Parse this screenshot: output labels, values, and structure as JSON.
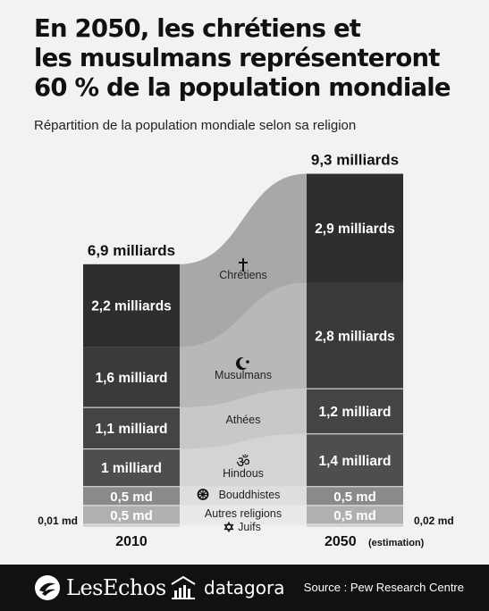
{
  "title_lines": [
    "En 2050, les chrétiens et",
    "les musulmans représenteront",
    "60 % de la population mondiale"
  ],
  "subtitle": "Répartition de la population mondiale selon sa religion",
  "chart_data": {
    "type": "stacked-bar-flow",
    "title": "",
    "unit": "milliards",
    "categories": [
      "2010",
      "2050"
    ],
    "category_labels": [
      {
        "year": "2010",
        "note": ""
      },
      {
        "year": "2050",
        "note": "(estimation)"
      }
    ],
    "totals": [
      {
        "value": 6.9,
        "label": "6,9 milliards"
      },
      {
        "value": 9.3,
        "label": "9,3 milliards"
      }
    ],
    "series": [
      {
        "name": "Chrétiens",
        "icon": "cross-icon",
        "color": "#2e2e2e",
        "flow_color": "#a8a8a8",
        "values": [
          2.2,
          2.9
        ],
        "value_labels": [
          "2,2 milliards",
          "2,9 milliards"
        ]
      },
      {
        "name": "Musulmans",
        "icon": "crescent-star-icon",
        "color": "#3a3a3a",
        "flow_color": "#b8b8b8",
        "values": [
          1.6,
          2.8
        ],
        "value_labels": [
          "1,6 milliard",
          "2,8 milliards"
        ]
      },
      {
        "name": "Athées",
        "icon": "",
        "color": "#444444",
        "flow_color": "#c8c8c8",
        "values": [
          1.1,
          1.2
        ],
        "value_labels": [
          "1,1 milliard",
          "1,2 milliard"
        ]
      },
      {
        "name": "Hindous",
        "icon": "om-icon",
        "color": "#4e4e4e",
        "flow_color": "#d4d4d4",
        "values": [
          1.0,
          1.4
        ],
        "value_labels": [
          "1 milliard",
          "1,4 milliard"
        ]
      },
      {
        "name": "Bouddhistes",
        "icon": "dharma-wheel-icon",
        "color": "#8a8a8a",
        "flow_color": "#dedede",
        "values": [
          0.5,
          0.5
        ],
        "value_labels": [
          "0,5 md",
          "0,5 md"
        ]
      },
      {
        "name": "Autres religions",
        "icon": "",
        "color": "#b0b0b0",
        "flow_color": "#e8e8e8",
        "values": [
          0.5,
          0.5
        ],
        "value_labels": [
          "0,5 md",
          "0,5 md"
        ]
      },
      {
        "name": "Juifs",
        "icon": "star-of-david-icon",
        "color": "#c8c8c8",
        "flow_color": "#f0f0f0",
        "values": [
          0.01,
          0.02
        ],
        "value_labels": [
          "0,01 md",
          "0,02 md"
        ]
      }
    ]
  },
  "footer": {
    "brand1": "LesEchos",
    "brand2": "datagora",
    "source": "Source : Pew Research Centre"
  },
  "colors": {
    "footer_bg": "#111111",
    "background": "#f2f2f2"
  }
}
